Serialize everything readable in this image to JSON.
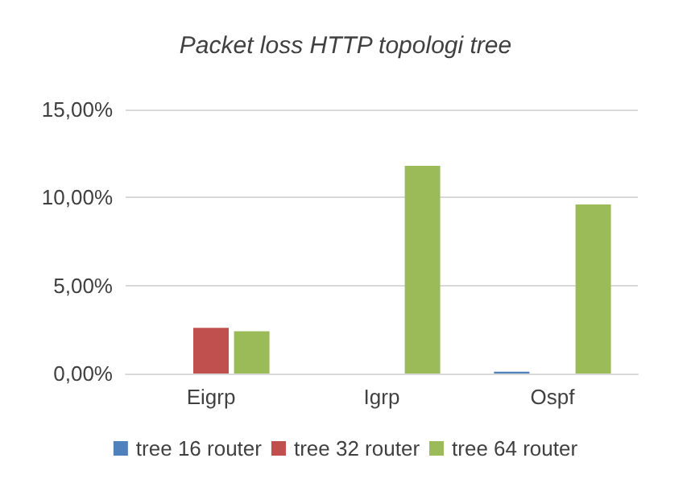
{
  "chart_data": {
    "type": "bar",
    "title": "Packet loss HTTP topologi tree",
    "categories": [
      "Eigrp",
      "Igrp",
      "Ospf"
    ],
    "series": [
      {
        "name": "tree 16 router",
        "color": "#4f81bd",
        "values": [
          0,
          0,
          0.1
        ]
      },
      {
        "name": "tree 32 router",
        "color": "#c0504d",
        "values": [
          2.6,
          0,
          0
        ]
      },
      {
        "name": "tree 64 router",
        "color": "#9bbb59",
        "values": [
          2.4,
          11.8,
          9.6
        ]
      }
    ],
    "ylim": [
      0,
      15
    ],
    "yticks": [
      {
        "value": 0,
        "label": "0,00%"
      },
      {
        "value": 5,
        "label": "5,00%"
      },
      {
        "value": 10,
        "label": "10,00%"
      },
      {
        "value": 15,
        "label": "15,00%"
      }
    ],
    "grid": "y",
    "legend": "bottom"
  }
}
